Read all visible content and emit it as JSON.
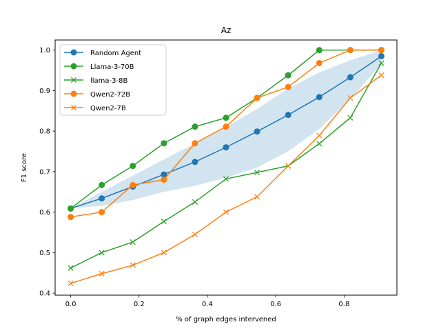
{
  "chart_data": {
    "type": "line",
    "title": "Az",
    "xlabel": "% of graph edges intervened",
    "ylabel": "F1 score",
    "xlim": [
      -0.0455,
      0.9545
    ],
    "ylim": [
      0.395,
      1.025
    ],
    "xticks": [
      0.0,
      0.2,
      0.4,
      0.6,
      0.8
    ],
    "xtick_labels": [
      "0.0",
      "0.2",
      "0.4",
      "0.6",
      "0.8"
    ],
    "yticks": [
      0.4,
      0.5,
      0.6,
      0.7,
      0.8,
      0.9,
      1.0
    ],
    "ytick_labels": [
      "0.4",
      "0.5",
      "0.6",
      "0.7",
      "0.8",
      "0.9",
      "1.0"
    ],
    "grid": false,
    "legend_position": "top-left",
    "x": [
      0.0,
      0.0909,
      0.1818,
      0.2727,
      0.3636,
      0.4545,
      0.5455,
      0.6364,
      0.7273,
      0.8182,
      0.9091
    ],
    "band": {
      "series": "Random Agent",
      "color": "#1f77b4",
      "lower": [
        0.61,
        0.615,
        0.63,
        0.65,
        0.665,
        0.685,
        0.71,
        0.75,
        0.805,
        0.88,
        0.965
      ],
      "upper": [
        0.61,
        0.65,
        0.69,
        0.73,
        0.77,
        0.81,
        0.855,
        0.905,
        0.945,
        0.975,
        1.0
      ]
    },
    "series": [
      {
        "name": "Random Agent",
        "color": "#1f77b4",
        "marker": "circle",
        "values": [
          0.609,
          0.634,
          0.663,
          0.693,
          0.724,
          0.76,
          0.799,
          0.84,
          0.884,
          0.933,
          0.985
        ]
      },
      {
        "name": "Llama-3-70B",
        "color": "#2ca02c",
        "marker": "circle",
        "values": [
          0.609,
          0.667,
          0.714,
          0.77,
          0.811,
          0.833,
          0.882,
          0.938,
          1.0,
          1.0,
          1.0
        ]
      },
      {
        "name": "llama-3-8B",
        "color": "#2ca02c",
        "marker": "x",
        "values": [
          0.462,
          0.5,
          0.526,
          0.577,
          0.625,
          0.682,
          0.698,
          0.714,
          0.769,
          0.833,
          0.968
        ]
      },
      {
        "name": "Qwen2-72B",
        "color": "#ff7f0e",
        "marker": "circle",
        "values": [
          0.588,
          0.6,
          0.667,
          0.68,
          0.77,
          0.811,
          0.882,
          0.909,
          0.968,
          1.0,
          1.0
        ]
      },
      {
        "name": "Qwen2-7B",
        "color": "#ff7f0e",
        "marker": "x",
        "values": [
          0.424,
          0.448,
          0.469,
          0.5,
          0.545,
          0.6,
          0.638,
          0.714,
          0.789,
          0.882,
          0.938
        ]
      }
    ]
  }
}
